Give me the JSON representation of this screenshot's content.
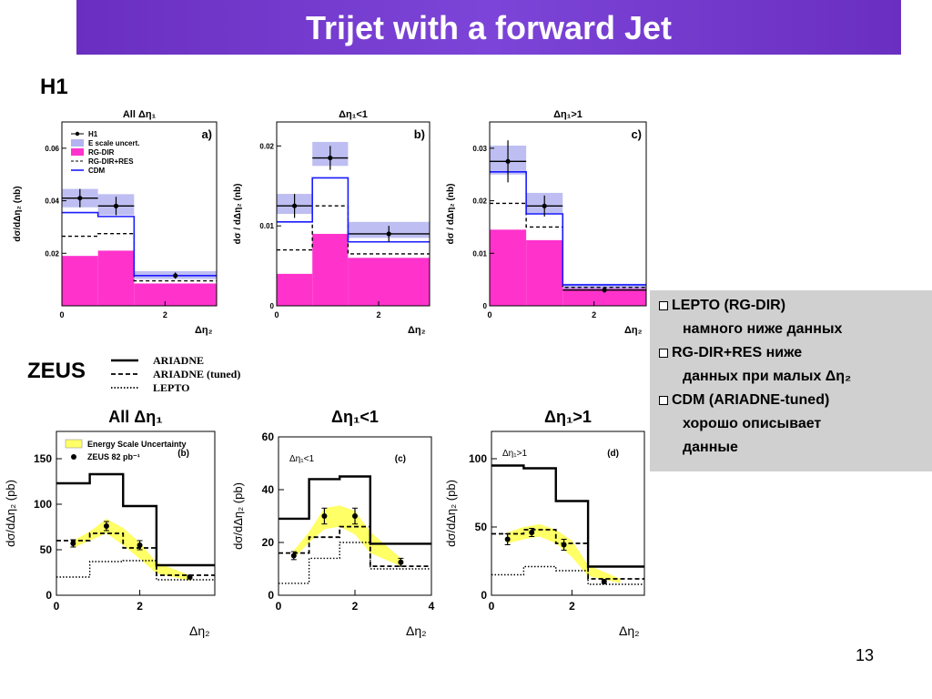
{
  "slide": {
    "title": "Trijet with a forward Jet",
    "page_number": "13"
  },
  "labels": {
    "h1": "H1",
    "zeus": "ZEUS"
  },
  "zeus_legend": [
    {
      "name": "ARIADNE",
      "style": "solid"
    },
    {
      "name": "ARIADNE (tuned)",
      "style": "dashed"
    },
    {
      "name": "LEPTO",
      "style": "dotted"
    }
  ],
  "info_box": {
    "lines": [
      {
        "bullet": true,
        "text": "LEPTO (RG-DIR)"
      },
      {
        "bullet": false,
        "text": "намного ниже данных"
      },
      {
        "bullet": true,
        "text": "RG-DIR+RES ниже"
      },
      {
        "bullet": false,
        "text": "данных при малых Δη₂"
      },
      {
        "bullet": true,
        "text": "CDM (ARIADNE-tuned)"
      },
      {
        "bullet": false,
        "text": "хорошо описывает"
      },
      {
        "bullet": false,
        "text": "данные"
      }
    ]
  },
  "colors": {
    "title_bg": "#7035c8",
    "rg_dir_fill": "#ff33cc",
    "escale_band": "#b3b3f0",
    "cdm": "#1a1aff",
    "zeus_band": "#ffff66"
  },
  "chart_data": [
    {
      "id": "h1-a",
      "type": "bar",
      "title": "All Δη₁",
      "tag": "a)",
      "xlabel": "Δη₂",
      "ylabel": "dσ/dΔη₂ (nb)",
      "xlim": [
        0,
        3
      ],
      "ylim": [
        0,
        0.07
      ],
      "xticks": [
        0,
        2
      ],
      "yticks": [
        0.02,
        0.04,
        0.06
      ],
      "ytick_labels": [
        "0.02",
        "0.04",
        "0.06"
      ],
      "bins": [
        0,
        0.7,
        1.4,
        3.0
      ],
      "legend": [
        "H1",
        "E scale uncert.",
        "RG-DIR",
        "RG-DIR+RES",
        "CDM"
      ],
      "rg_dir": [
        0.019,
        0.021,
        0.0085
      ],
      "rg_dir_res": [
        0.0265,
        0.0275,
        0.0095
      ],
      "cdm": [
        0.0355,
        0.034,
        0.0115
      ],
      "band": [
        [
          0.0375,
          0.0445
        ],
        [
          0.0345,
          0.0425
        ],
        [
          0.0102,
          0.0132
        ]
      ],
      "data": {
        "x": [
          0.35,
          1.05,
          2.2
        ],
        "y": [
          0.041,
          0.038,
          0.0115
        ],
        "err": [
          0.0035,
          0.0035,
          0.0012
        ]
      }
    },
    {
      "id": "h1-b",
      "type": "bar",
      "title": "Δη₁<1",
      "tag": "b)",
      "xlabel": "Δη₂",
      "ylabel": "dσ / dΔη₂ (nb)",
      "xlim": [
        0,
        3
      ],
      "ylim": [
        0,
        0.023
      ],
      "xticks": [
        0,
        2
      ],
      "yticks": [
        0,
        0.01,
        0.02
      ],
      "ytick_labels": [
        "0",
        "0.01",
        "0.02"
      ],
      "bins": [
        0,
        0.7,
        1.4,
        3.0
      ],
      "legend": [],
      "rg_dir": [
        0.004,
        0.009,
        0.006
      ],
      "rg_dir_res": [
        0.007,
        0.0125,
        0.0065
      ],
      "cdm": [
        0.0105,
        0.016,
        0.008
      ],
      "band": [
        [
          0.0115,
          0.014
        ],
        [
          0.0175,
          0.0205
        ],
        [
          0.0085,
          0.0105
        ]
      ],
      "data": {
        "x": [
          0.35,
          1.05,
          2.2
        ],
        "y": [
          0.0125,
          0.0185,
          0.009
        ],
        "err": [
          0.0015,
          0.0015,
          0.001
        ]
      }
    },
    {
      "id": "h1-c",
      "type": "bar",
      "title": "Δη₁>1",
      "tag": "c)",
      "xlabel": "Δη₂",
      "ylabel": "dσ / dΔη₂ (nb)",
      "xlim": [
        0,
        3
      ],
      "ylim": [
        0,
        0.035
      ],
      "xticks": [
        0,
        2
      ],
      "yticks": [
        0,
        0.01,
        0.02,
        0.03
      ],
      "ytick_labels": [
        "0",
        "0.01",
        "0.02",
        "0.03"
      ],
      "bins": [
        0,
        0.7,
        1.4,
        3.0
      ],
      "legend": [],
      "rg_dir": [
        0.0145,
        0.0125,
        0.0035
      ],
      "rg_dir_res": [
        0.0195,
        0.015,
        0.0035
      ],
      "cdm": [
        0.0255,
        0.0175,
        0.004
      ],
      "band": [
        [
          0.025,
          0.0305
        ],
        [
          0.0175,
          0.0215
        ],
        [
          0.0032,
          0.0042
        ]
      ],
      "data": {
        "x": [
          0.35,
          1.05,
          2.2
        ],
        "y": [
          0.0275,
          0.019,
          0.003
        ],
        "err": [
          0.004,
          0.002,
          0.0005
        ]
      }
    },
    {
      "id": "zeus-b",
      "type": "bar",
      "title": "All Δη₁",
      "tag": "(b)",
      "xlabel": "Δη₂",
      "ylabel": "dσ/dΔη₂ (pb)",
      "xlim": [
        0,
        3.8
      ],
      "ylim": [
        0,
        180
      ],
      "xticks": [
        0,
        2
      ],
      "yticks": [
        0,
        50,
        100,
        150
      ],
      "ytick_labels": [
        "0",
        "50",
        "100",
        "150"
      ],
      "bins": [
        0,
        0.8,
        1.6,
        2.4,
        3.8
      ],
      "legend": [
        "Energy Scale Uncertainty",
        "ZEUS 82 pb⁻¹"
      ],
      "ariadne": [
        123,
        133,
        98,
        33
      ],
      "ariadne_tuned": [
        60,
        68,
        52,
        22
      ],
      "lepto": [
        20,
        37,
        38,
        17
      ],
      "band_x": [
        0.4,
        0.8,
        1.2,
        1.6,
        2.0,
        2.4,
        3.2
      ],
      "band_low": [
        52,
        60,
        68,
        55,
        40,
        24,
        16
      ],
      "band_high": [
        60,
        70,
        84,
        74,
        58,
        36,
        22
      ],
      "data": {
        "x": [
          0.4,
          1.2,
          2.0,
          3.2
        ],
        "y": [
          57,
          76,
          55,
          20
        ],
        "err": [
          4,
          5,
          5,
          2
        ]
      }
    },
    {
      "id": "zeus-c",
      "type": "bar",
      "title": "Δη₁<1",
      "tag": "(c)",
      "inner_label": "Δη₁<1",
      "xlabel": "Δη₂",
      "ylabel": "dσ/dΔη₂ (pb)",
      "xlim": [
        0,
        4
      ],
      "ylim": [
        0,
        60
      ],
      "xticks": [
        0,
        2,
        4
      ],
      "yticks": [
        0,
        20,
        40,
        60
      ],
      "ytick_labels": [
        "0",
        "20",
        "40",
        "60"
      ],
      "bins": [
        0,
        0.8,
        1.6,
        2.4,
        4.0
      ],
      "legend": [],
      "ariadne": [
        29,
        44,
        45,
        19.5
      ],
      "ariadne_tuned": [
        16,
        22,
        26,
        11
      ],
      "lepto": [
        4.5,
        14,
        20,
        10
      ],
      "band_x": [
        0.4,
        0.8,
        1.2,
        1.6,
        2.0,
        2.4,
        3.2
      ],
      "band_low": [
        14,
        20,
        25,
        26,
        23,
        16,
        11
      ],
      "band_high": [
        17,
        24,
        33,
        34,
        32,
        24,
        14
      ],
      "data": {
        "x": [
          0.4,
          1.2,
          2.0,
          3.2
        ],
        "y": [
          15,
          30,
          30,
          12.5
        ],
        "err": [
          1.5,
          3,
          3,
          1.5
        ]
      }
    },
    {
      "id": "zeus-d",
      "type": "bar",
      "title": "Δη₁>1",
      "tag": "(d)",
      "inner_label": "Δη₁>1",
      "xlabel": "Δη₂",
      "ylabel": "dσ/dΔη₂ (pb)",
      "xlim": [
        0,
        3.8
      ],
      "ylim": [
        0,
        120
      ],
      "xticks": [
        0,
        2
      ],
      "yticks": [
        0,
        50,
        100
      ],
      "ytick_labels": [
        "0",
        "50",
        "100"
      ],
      "bins": [
        0,
        0.8,
        1.6,
        2.4,
        3.8
      ],
      "legend": [],
      "ariadne": [
        95,
        93,
        69,
        21
      ],
      "ariadne_tuned": [
        45,
        48,
        38,
        12
      ],
      "lepto": [
        15,
        21,
        18,
        8
      ],
      "band_x": [
        0.4,
        0.8,
        1.2,
        1.6,
        2.0,
        2.4,
        3.2
      ],
      "band_low": [
        38,
        41,
        43,
        38,
        28,
        14,
        9
      ],
      "band_high": [
        46,
        50,
        52,
        48,
        40,
        22,
        12
      ],
      "data": {
        "x": [
          0.4,
          1.0,
          1.8,
          2.8
        ],
        "y": [
          41,
          46,
          37,
          10
        ],
        "err": [
          4,
          3,
          4,
          1.5
        ]
      }
    }
  ]
}
